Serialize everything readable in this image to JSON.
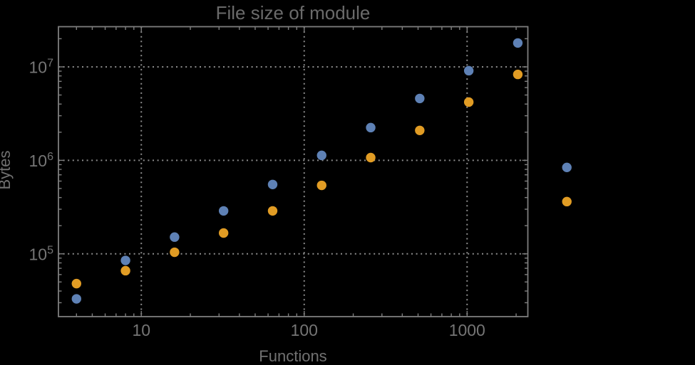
{
  "style": {
    "background_color": "#000000",
    "frame_color": "#7e7e7e",
    "grid_color": "#8c8c8c",
    "title_color": "#6a6a6a",
    "axis_label_color": "#717171",
    "tick_label_color": "#757575"
  },
  "chart_data": {
    "type": "scatter",
    "title": "File size of module",
    "xlabel": "Functions",
    "ylabel": "Bytes",
    "x_scale": "log",
    "y_scale": "log",
    "xlim": [
      3.1,
      2360
    ],
    "ylim": [
      21300,
      26900000
    ],
    "grid": "dotted gridlines at major ticks on both axes",
    "legend": "none",
    "frame": "ticks on all four edges, minor log ticks",
    "clip_points": false,
    "x_major_ticks": [
      10,
      100,
      1000
    ],
    "x_tick_labels": [
      "10",
      "100",
      "1000"
    ],
    "y_major_ticks": [
      100000,
      1000000,
      10000000
    ],
    "y_tick_labels": [
      "10^5",
      "10^6",
      "10^7"
    ],
    "x": [
      4,
      8,
      16,
      32,
      64,
      128,
      256,
      512,
      1024,
      2048,
      4096
    ],
    "series": [
      {
        "name": "blue-series",
        "color": "#5e81b5",
        "marker": "circle",
        "values": [
          33000,
          85000,
          151000,
          288000,
          552000,
          1130000,
          2240000,
          4590000,
          9100000,
          18000000,
          840000
        ]
      },
      {
        "name": "orange-series",
        "color": "#e19c24",
        "marker": "circle",
        "values": [
          48000,
          66000,
          104000,
          167000,
          288000,
          540000,
          1070000,
          2090000,
          4200000,
          8300000,
          362000
        ]
      }
    ]
  }
}
